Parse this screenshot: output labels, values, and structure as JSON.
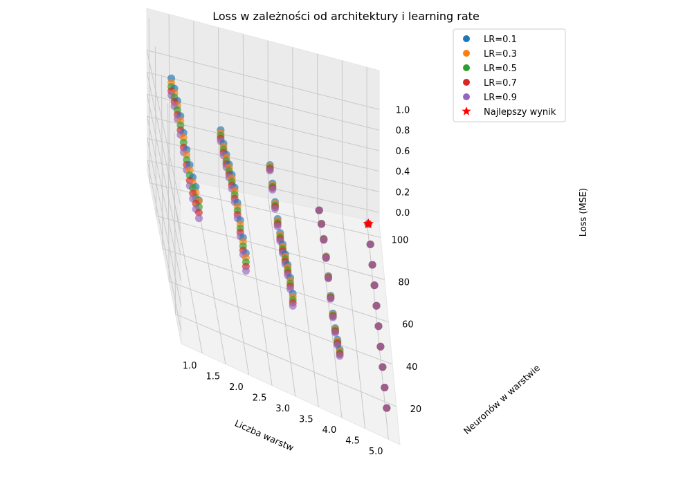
{
  "chart_data": {
    "type": "scatter",
    "title": "Loss w zależności od architektury i learning rate",
    "xlabel": "Liczba warstw",
    "ylabel": "Neuronów w warstwie",
    "zlabel": "Loss (MSE)",
    "x_ticks": [
      "1.0",
      "1.5",
      "2.0",
      "2.5",
      "3.0",
      "3.5",
      "4.0",
      "4.5",
      "5.0"
    ],
    "y_ticks": [
      "20",
      "40",
      "60",
      "80",
      "100"
    ],
    "z_ticks": [
      "0.0",
      "0.2",
      "0.4",
      "0.6",
      "0.8",
      "1.0"
    ],
    "xlim": [
      1,
      5
    ],
    "ylim": [
      10,
      100
    ],
    "zlim": [
      0,
      1
    ],
    "grid": true,
    "legend_position": "top-right",
    "layers": [
      1,
      2,
      3,
      4,
      5
    ],
    "neurons": [
      10,
      20,
      30,
      40,
      50,
      60,
      70,
      80,
      90,
      100
    ],
    "series": [
      {
        "name": "LR=0.1",
        "color": "#1f77b4",
        "lr": 0.1
      },
      {
        "name": "LR=0.3",
        "color": "#ff7f0e",
        "lr": 0.3
      },
      {
        "name": "LR=0.5",
        "color": "#2ca02c",
        "lr": 0.5
      },
      {
        "name": "LR=0.7",
        "color": "#d62728",
        "lr": 0.7
      },
      {
        "name": "LR=0.9",
        "color": "#9467bd",
        "lr": 0.9
      }
    ],
    "best": {
      "name": "Najlepszy wynik",
      "color": "#ff0000",
      "x": 5,
      "y": 100,
      "z": 0.0
    }
  }
}
